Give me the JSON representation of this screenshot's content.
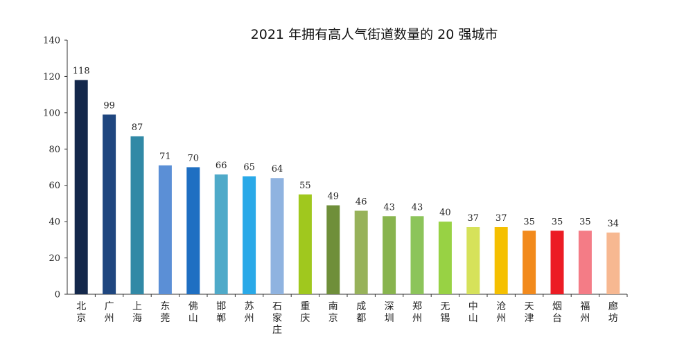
{
  "chart_data": {
    "type": "bar",
    "title": "2021 年拥有高人气街道数量的 20 强城市",
    "xlabel": "",
    "ylabel": "",
    "ylim": [
      0,
      140
    ],
    "yticks": [
      0,
      20,
      40,
      60,
      80,
      100,
      120,
      140
    ],
    "grid": false,
    "legend": "none",
    "categories": [
      "北京",
      "广州",
      "上海",
      "东莞",
      "佛山",
      "邯郸",
      "苏州",
      "石家庄",
      "重庆",
      "南京",
      "成都",
      "深圳",
      "郑州",
      "无锡",
      "中山",
      "沧州",
      "天津",
      "烟台",
      "福州",
      "廊坊"
    ],
    "values": [
      118,
      99,
      87,
      71,
      70,
      66,
      65,
      64,
      55,
      49,
      46,
      43,
      43,
      40,
      37,
      37,
      35,
      35,
      35,
      34
    ],
    "colors": [
      "#14284b",
      "#1f467f",
      "#3189a6",
      "#5b8fd6",
      "#1f6fc2",
      "#4faac9",
      "#29a9e8",
      "#8fb3e0",
      "#a0c81e",
      "#6f8f3a",
      "#97b25a",
      "#88b44e",
      "#8cc45a",
      "#98d244",
      "#d6e25a",
      "#f5c000",
      "#f28a1c",
      "#ec1c24",
      "#f47c86",
      "#f7b891"
    ]
  }
}
